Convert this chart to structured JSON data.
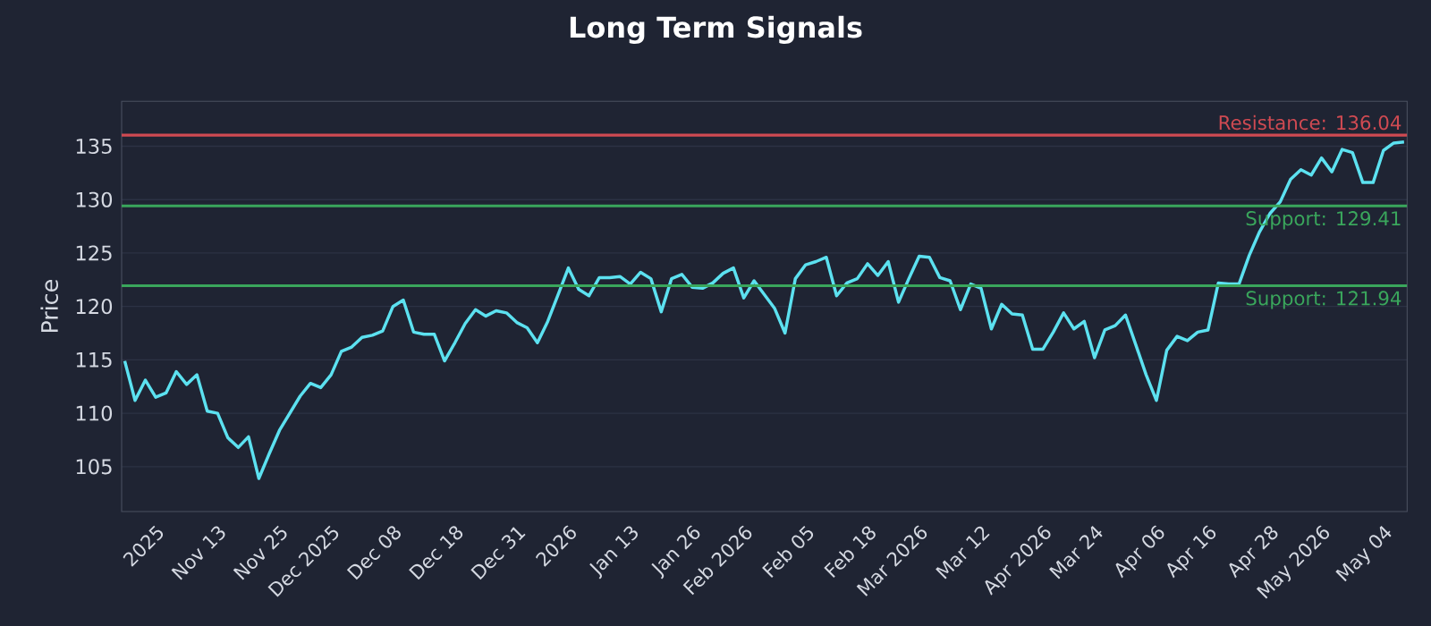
{
  "chart_data": {
    "type": "line",
    "title": "Long Term Signals",
    "ylabel": "Price",
    "categories": [
      null,
      null,
      null,
      "2025",
      null,
      null,
      null,
      null,
      null,
      "Nov 13",
      null,
      null,
      null,
      null,
      null,
      "Nov 25",
      null,
      null,
      null,
      null,
      "Dec 2025",
      null,
      null,
      null,
      null,
      null,
      "Dec 08",
      null,
      null,
      null,
      null,
      null,
      "Dec 18",
      null,
      null,
      null,
      null,
      null,
      "Dec 31",
      null,
      null,
      null,
      null,
      "2026",
      null,
      null,
      null,
      null,
      null,
      "Jan 13",
      null,
      null,
      null,
      null,
      null,
      "Jan 26",
      null,
      null,
      null,
      null,
      "Feb 2026",
      null,
      null,
      null,
      null,
      null,
      "Feb 05",
      null,
      null,
      null,
      null,
      null,
      "Feb 18",
      null,
      null,
      null,
      null,
      "Mar 2026",
      null,
      null,
      null,
      null,
      null,
      "Mar 12",
      null,
      null,
      null,
      null,
      null,
      "Apr 2026",
      null,
      null,
      null,
      null,
      "Mar 24",
      null,
      null,
      null,
      null,
      null,
      "Apr 06",
      null,
      null,
      null,
      null,
      "Apr 16",
      null,
      null,
      null,
      null,
      null,
      "Apr 28",
      null,
      null,
      null,
      null,
      "May 2026",
      null,
      null,
      null,
      null,
      null,
      "May 04",
      null,
      null
    ],
    "series": [
      {
        "color": "#5ce1f0",
        "values": [
          114.9,
          111.2,
          113.1,
          111.5,
          111.9,
          113.9,
          112.7,
          113.6,
          110.2,
          110.0,
          107.7,
          106.8,
          107.8,
          103.9,
          106.2,
          108.4,
          110.0,
          111.6,
          112.8,
          112.4,
          113.6,
          115.8,
          116.2,
          117.1,
          117.3,
          117.7,
          120.0,
          120.6,
          117.6,
          117.4,
          117.4,
          114.9,
          116.6,
          118.4,
          119.7,
          119.1,
          119.6,
          119.4,
          118.5,
          118.0,
          116.6,
          118.6,
          121.1,
          123.6,
          121.6,
          121.0,
          122.7,
          122.7,
          122.8,
          122.1,
          123.2,
          122.6,
          119.5,
          122.6,
          123.0,
          121.8,
          121.7,
          122.2,
          123.1,
          123.6,
          120.8,
          122.4,
          121.1,
          119.8,
          117.5,
          122.6,
          123.9,
          124.2,
          124.6,
          121.0,
          122.2,
          122.6,
          124.0,
          122.9,
          124.2,
          120.4,
          122.6,
          124.7,
          124.6,
          122.7,
          122.4,
          119.7,
          122.1,
          121.7,
          117.9,
          120.2,
          119.3,
          119.2,
          116.0,
          116.0,
          117.6,
          119.4,
          117.9,
          118.6,
          115.2,
          117.8,
          118.2,
          119.2,
          116.4,
          113.6,
          111.2,
          115.9,
          117.2,
          116.8,
          117.6,
          117.8,
          122.2,
          122.1,
          122.1,
          124.8,
          127.0,
          128.7,
          129.8,
          131.9,
          132.8,
          132.3,
          133.9,
          132.6,
          134.7,
          134.4,
          131.6,
          131.6,
          134.6,
          135.3,
          135.4
        ]
      }
    ],
    "ylim": [
      100.8,
      139.2
    ],
    "yticks": [
      105,
      110,
      115,
      120,
      125,
      130,
      135
    ],
    "grid": "y",
    "ref_lines": [
      {
        "axis": "y",
        "value": 136.04,
        "label": "Resistance: 136.04",
        "color": "#cf4a52"
      },
      {
        "axis": "y",
        "value": 129.41,
        "label": "Support: 129.41",
        "color": "#3aa65c"
      },
      {
        "axis": "y",
        "value": 121.94,
        "label": "Support: 121.94",
        "color": "#3aa65c"
      }
    ]
  }
}
